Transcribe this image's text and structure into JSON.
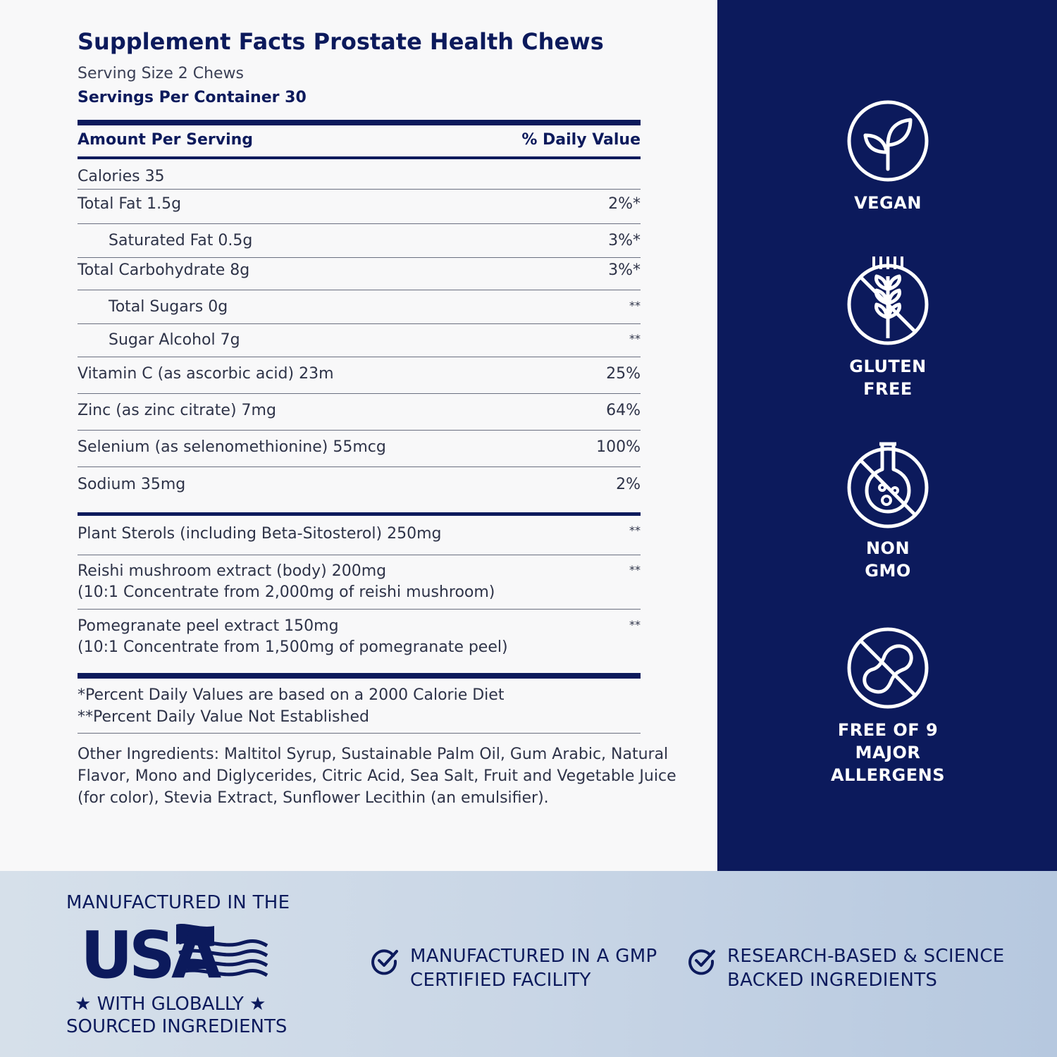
{
  "label": {
    "title": "Supplement Facts Prostate Health Chews",
    "serving_size": "Serving Size 2 Chews",
    "servings_per_container": "Servings Per Container 30",
    "amount_header": "Amount Per Serving",
    "dv_header": "% Daily Value",
    "rows": [
      {
        "name": "Calories 35",
        "dv": ""
      },
      {
        "name": "Total Fat 1.5g",
        "dv": "2%*"
      },
      {
        "name": "Saturated Fat 0.5g",
        "dv": "3%*"
      },
      {
        "name": "Total Carbohydrate 8g",
        "dv": "3%*"
      },
      {
        "name": "Total Sugars 0g",
        "dv": "**"
      },
      {
        "name": "Sugar Alcohol 7g",
        "dv": "**"
      },
      {
        "name": "Vitamin C (as ascorbic acid) 23m",
        "dv": "25%"
      },
      {
        "name": "Zinc (as zinc citrate) 7mg",
        "dv": "64%"
      },
      {
        "name": "Selenium (as selenomethionine) 55mcg",
        "dv": "100%"
      },
      {
        "name": "Sodium 35mg",
        "dv": "2%"
      }
    ],
    "blend": [
      {
        "name": "Plant Sterols (including Beta-Sitosterol) 250mg",
        "sub": "",
        "dv": "**"
      },
      {
        "name": "Reishi mushroom extract (body) 200mg",
        "sub": "(10:1 Concentrate from 2,000mg of reishi mushroom)",
        "dv": "**"
      },
      {
        "name": "Pomegranate peel extract 150mg",
        "sub": "(10:1 Concentrate from 1,500mg of pomegranate peel)",
        "dv": "**"
      }
    ],
    "footnote_1": "*Percent Daily Values are based on a 2000 Calorie Diet",
    "footnote_2": "**Percent Daily Value Not Established",
    "other_ingredients": [
      "Other Ingredients: Maltitol Syrup, Sustainable Palm Oil, Gum Arabic, Natural",
      "Flavor, Mono and Diglycerides, Citric Acid, Sea Salt, Fruit and Vegetable Juice",
      "(for color), Stevia Extract, Sunflower Lecithin (an emulsifier)."
    ]
  },
  "badges": [
    {
      "icon": "leaf-icon",
      "line1": "VEGAN",
      "line2": ""
    },
    {
      "icon": "wheat-crossed-icon",
      "line1": "GLUTEN",
      "line2": "FREE"
    },
    {
      "icon": "flask-crossed-icon",
      "line1": "NON",
      "line2": "GMO"
    },
    {
      "icon": "peanut-crossed-icon",
      "line1": "FREE OF 9 MAJOR",
      "line2": "ALLERGENS"
    }
  ],
  "footer": {
    "usa_top": "MANUFACTURED IN THE",
    "usa_big": "USA",
    "usa_line2": "★ WITH GLOBALLY ★",
    "usa_line3": "SOURCED INGREDIENTS",
    "claim_1_line1": "MANUFACTURED IN A GMP",
    "claim_1_line2": "CERTIFIED FACILITY",
    "claim_2_line1": "RESEARCH-BASED & SCIENCE",
    "claim_2_line2": "BACKED INGREDIENTS"
  },
  "colors": {
    "navy": "#0c1a5c",
    "light": "#f8f8f9",
    "footer_blue": "#c9d6e6"
  }
}
